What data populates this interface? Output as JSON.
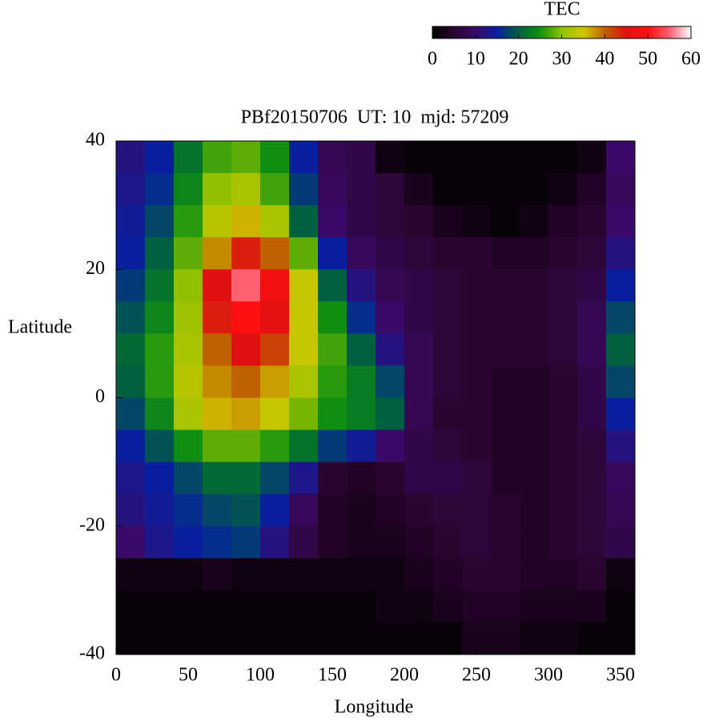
{
  "chart_data": {
    "type": "heatmap",
    "title": "PBf20150706  UT: 10  mjd: 57209",
    "x_label": "Longitude",
    "y_label": "Latitude",
    "colorbar_label": "TEC",
    "x": [
      10,
      30,
      50,
      70,
      90,
      110,
      130,
      150,
      170,
      190,
      210,
      230,
      250,
      270,
      290,
      310,
      330,
      350
    ],
    "y": [
      37.5,
      32.5,
      27.5,
      22.5,
      17.5,
      12.5,
      7.5,
      2.5,
      -2.5,
      -7.5,
      -12.5,
      -17.5,
      -22.5,
      -27.5,
      -32.5,
      -37.5
    ],
    "z": [
      [
        12,
        15,
        22,
        27,
        28,
        25,
        15,
        8,
        7,
        2,
        1,
        1,
        1,
        1,
        1,
        1,
        2,
        10
      ],
      [
        13,
        16,
        24,
        30,
        32,
        27,
        17,
        9,
        7,
        6,
        3,
        1,
        1,
        1,
        1,
        2,
        4,
        9
      ],
      [
        14,
        18,
        26,
        33,
        36,
        32,
        20,
        10,
        7,
        6,
        5,
        3,
        2,
        1,
        2,
        4,
        5,
        10
      ],
      [
        15,
        20,
        28,
        38,
        44,
        40,
        28,
        15,
        9,
        7,
        6,
        5,
        5,
        4,
        4,
        5,
        6,
        12
      ],
      [
        17,
        22,
        30,
        45,
        55,
        48,
        34,
        20,
        12,
        8,
        7,
        6,
        5,
        5,
        5,
        6,
        7,
        15
      ],
      [
        19,
        24,
        31,
        44,
        50,
        46,
        34,
        25,
        16,
        10,
        7,
        6,
        5,
        5,
        5,
        6,
        8,
        18
      ],
      [
        21,
        26,
        32,
        40,
        45,
        42,
        34,
        27,
        20,
        12,
        8,
        6,
        5,
        5,
        5,
        6,
        8,
        20
      ],
      [
        20,
        26,
        33,
        38,
        40,
        37,
        32,
        26,
        23,
        18,
        8,
        6,
        5,
        4,
        4,
        5,
        7,
        18
      ],
      [
        18,
        24,
        32,
        36,
        37,
        34,
        29,
        25,
        23,
        20,
        8,
        5,
        5,
        4,
        4,
        5,
        7,
        15
      ],
      [
        15,
        19,
        25,
        28,
        28,
        26,
        22,
        17,
        14,
        10,
        7,
        6,
        5,
        4,
        4,
        5,
        6,
        12
      ],
      [
        13,
        15,
        18,
        21,
        21,
        18,
        13,
        5,
        4,
        5,
        7,
        7,
        6,
        4,
        4,
        5,
        6,
        9
      ],
      [
        12,
        14,
        16,
        18,
        19,
        15,
        9,
        4,
        3,
        4,
        5,
        6,
        6,
        5,
        4,
        5,
        6,
        8
      ],
      [
        10,
        13,
        15,
        16,
        17,
        12,
        7,
        4,
        3,
        3,
        4,
        5,
        6,
        5,
        4,
        5,
        6,
        7
      ],
      [
        2,
        2,
        2,
        3,
        2,
        2,
        2,
        2,
        2,
        2,
        3,
        4,
        5,
        5,
        4,
        4,
        5,
        2
      ],
      [
        1,
        1,
        1,
        1,
        1,
        1,
        1,
        1,
        1,
        2,
        2,
        3,
        4,
        4,
        3,
        3,
        3,
        1
      ],
      [
        1,
        1,
        1,
        1,
        1,
        1,
        1,
        1,
        1,
        1,
        1,
        1,
        3,
        3,
        2,
        2,
        1,
        1
      ]
    ],
    "xlim": [
      0,
      360
    ],
    "xticks": [
      0,
      50,
      100,
      150,
      200,
      250,
      300,
      350
    ],
    "ylim": [
      -40,
      40
    ],
    "yticks": [
      -40,
      -20,
      0,
      20,
      40
    ],
    "zlim": [
      0,
      60
    ],
    "zticks": [
      0,
      10,
      20,
      30,
      40,
      50,
      60
    ],
    "colors": [
      "#000000",
      "#2a0530",
      "#3a0a6a",
      "#0820a0",
      "#006040",
      "#109010",
      "#90c000",
      "#d0c800",
      "#c06000",
      "#e01010",
      "#ff1010",
      "#ff6070",
      "#ffffff"
    ]
  }
}
